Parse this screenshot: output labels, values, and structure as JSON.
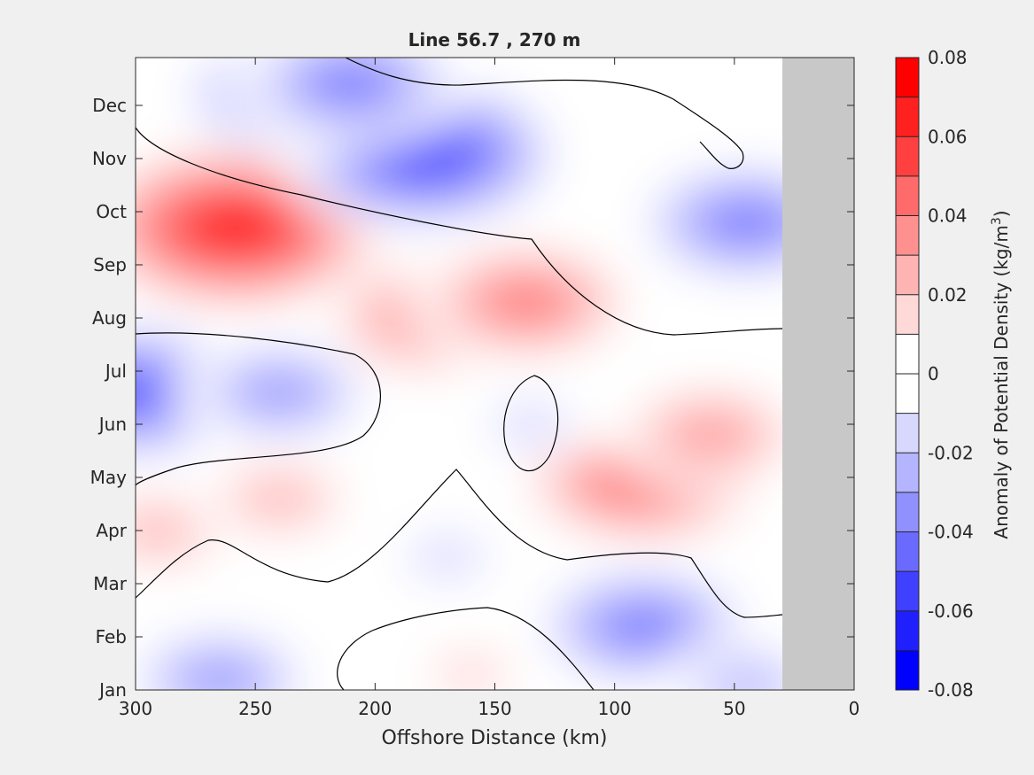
{
  "chart_data": {
    "type": "heatmap",
    "title": "Line 56.7 , 270 m",
    "xlabel": "Offshore Distance (km)",
    "x_ticks": [
      300,
      250,
      200,
      150,
      100,
      50,
      0
    ],
    "xlim": [
      300,
      0
    ],
    "y_ticks": [
      "Jan",
      "Feb",
      "Mar",
      "Apr",
      "May",
      "Jun",
      "Jul",
      "Aug",
      "Sep",
      "Oct",
      "Nov",
      "Dec"
    ],
    "colorbar": {
      "label_main": "Anomaly of Potential Density (kg/m",
      "label_sup": "3",
      "label_end": ")",
      "range": [
        -0.08,
        0.08
      ],
      "step": 0.01,
      "tick_labels": [
        "0.08",
        "0.06",
        "0.04",
        "0.02",
        "0",
        "-0.02",
        "-0.04",
        "-0.06",
        "-0.08"
      ],
      "colors": [
        "#ff0000",
        "#ff2020",
        "#ff4040",
        "#ff6a6a",
        "#ff9090",
        "#ffb4b4",
        "#ffd8d8",
        "#ffffff",
        "#ffffff",
        "#d8d8ff",
        "#b4b4ff",
        "#9090ff",
        "#6a6aff",
        "#4040ff",
        "#2020ff",
        "#0000ff"
      ]
    },
    "no_data_region_km": [
      30,
      0
    ],
    "no_data_color": "#c8c8c8",
    "features": [
      {
        "distance_km": 258,
        "month": 8.7,
        "value": 0.08
      },
      {
        "distance_km": 180,
        "month": 10.1,
        "value": -0.07
      },
      {
        "distance_km": 236,
        "month": 11.2,
        "value": -0.05
      },
      {
        "distance_km": 210,
        "month": 11.4,
        "value": -0.045
      },
      {
        "distance_km": 300,
        "month": 5.6,
        "value": -0.06
      },
      {
        "distance_km": 240,
        "month": 5.6,
        "value": -0.035
      },
      {
        "distance_km": 175,
        "month": 7.0,
        "value": 0.05
      },
      {
        "distance_km": 137,
        "month": 7.3,
        "value": 0.05
      },
      {
        "distance_km": 88,
        "month": 4.0,
        "value": 0.055
      },
      {
        "distance_km": 60,
        "month": 4.8,
        "value": 0.035
      },
      {
        "distance_km": 45,
        "month": 8.8,
        "value": -0.045
      },
      {
        "distance_km": 88,
        "month": 1.2,
        "value": -0.045
      },
      {
        "distance_km": 265,
        "month": 0.2,
        "value": -0.04
      },
      {
        "distance_km": 290,
        "month": 3.0,
        "value": 0.025
      },
      {
        "distance_km": 240,
        "month": 3.6,
        "value": 0.025
      },
      {
        "distance_km": 170,
        "month": 2.5,
        "value": -0.02
      },
      {
        "distance_km": 160,
        "month": 0.3,
        "value": 0.015
      },
      {
        "distance_km": 135,
        "month": 5.0,
        "value": -0.02
      },
      {
        "distance_km": 45,
        "month": 0.1,
        "value": -0.03
      }
    ]
  }
}
